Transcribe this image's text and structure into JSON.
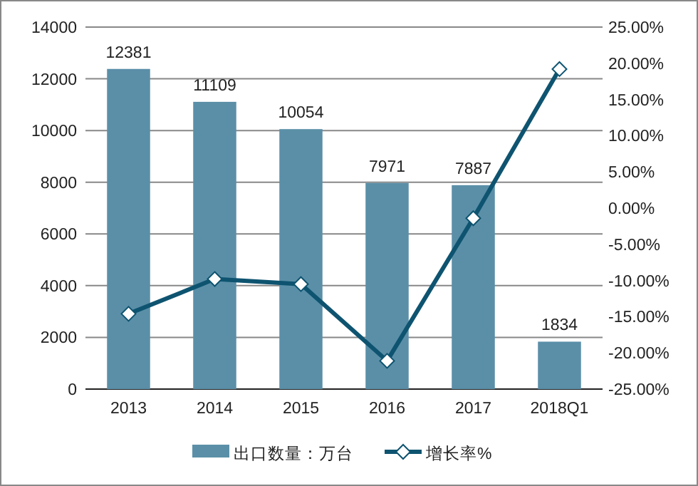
{
  "chart_data": {
    "type": "bar",
    "categories": [
      "2013",
      "2014",
      "2015",
      "2016",
      "2017",
      "2018Q1"
    ],
    "series": [
      {
        "name": "出口数量：万台",
        "color": "#5b8fa8",
        "values": [
          12381,
          11109,
          10054,
          7971,
          7887,
          1834
        ],
        "value_labels": [
          "12381",
          "11109",
          "10054",
          "7971",
          "7887",
          "1834"
        ]
      },
      {
        "name": "增长率%",
        "type": "line",
        "axis": "y2",
        "color": "#0e5470",
        "marker": "diamond",
        "values": [
          -14.6,
          -9.8,
          -10.5,
          -21.1,
          -1.4,
          19.2
        ]
      }
    ],
    "ylim": [
      0,
      14000
    ],
    "yticks": [
      0,
      2000,
      4000,
      6000,
      8000,
      10000,
      12000,
      14000
    ],
    "y2lim": [
      -25,
      25
    ],
    "y2ticks": [
      {
        "value": 25,
        "label": "25.00%"
      },
      {
        "value": 20,
        "label": "20.00%"
      },
      {
        "value": 15,
        "label": "15.00%"
      },
      {
        "value": 10,
        "label": "10.00%"
      },
      {
        "value": 5,
        "label": "5.00%"
      },
      {
        "value": 0,
        "label": "0.00%"
      },
      {
        "value": -5,
        "label": "-5.00%"
      },
      {
        "value": -10,
        "label": "-10.00%"
      },
      {
        "value": -15,
        "label": "-15.00%"
      },
      {
        "value": -20,
        "label": "-20.00%"
      },
      {
        "value": -25,
        "label": "-25.00%"
      }
    ],
    "grid": "y",
    "legend": "bottom"
  }
}
